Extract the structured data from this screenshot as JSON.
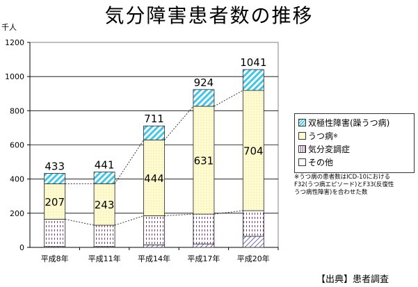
{
  "chart_data": {
    "type": "bar",
    "stacked": true,
    "title": "気分障害患者数の推移",
    "ylabel": "千人",
    "ylim": [
      0,
      1200
    ],
    "yticks": [
      0,
      200,
      400,
      600,
      800,
      1000,
      1200
    ],
    "categories": [
      "平成8年",
      "平成11年",
      "平成14年",
      "平成17年",
      "平成20年"
    ],
    "series": [
      {
        "name": "その他",
        "values": [
          5,
          5,
          15,
          20,
          65
        ],
        "color": "#ffffff"
      },
      {
        "name": "気分変調症",
        "values": [
          160,
          125,
          170,
          175,
          150
        ],
        "color": "#8a4a8a"
      },
      {
        "name": "うつ病",
        "values": [
          207,
          243,
          444,
          631,
          704
        ],
        "color": "#fffbd0"
      },
      {
        "name": "双極性障害(躁うつ病)",
        "values": [
          61,
          68,
          82,
          98,
          122
        ],
        "color": "#3fc6e8"
      }
    ],
    "totals": [
      433,
      441,
      711,
      924,
      1041
    ],
    "grid": true,
    "legend": "right"
  },
  "legend": {
    "bipolar": "双極性障害(躁うつ病)",
    "depression": "うつ病",
    "depression_mark": "※",
    "dysthymia": "気分変調症",
    "other": "その他"
  },
  "note": {
    "line1": "※うつ病の患者数はICD-10における",
    "line2": "F32(うつ病エピソード)とF33(反復性",
    "line3": "うつ病性障害)を合わせた数"
  },
  "source": "【出典】患者調査"
}
